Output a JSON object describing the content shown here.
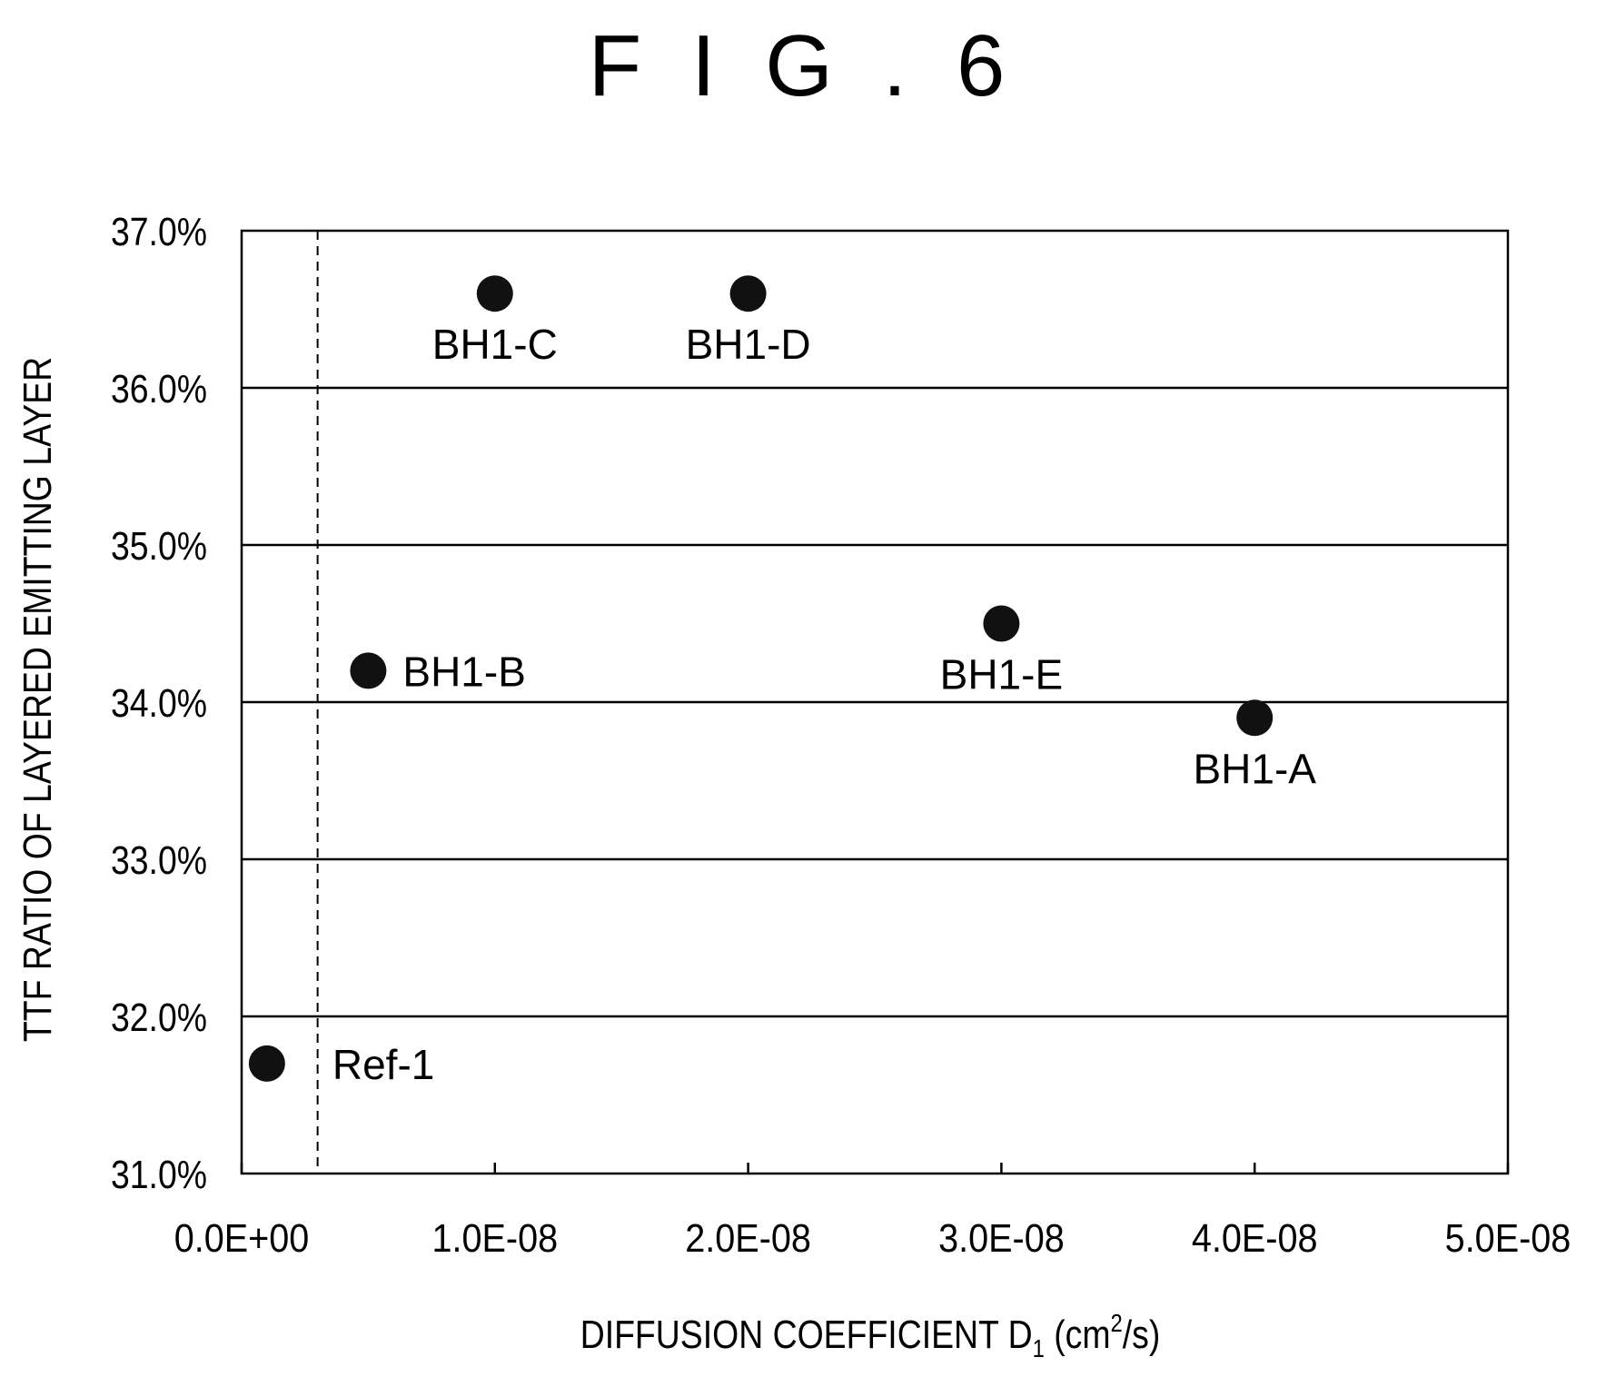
{
  "figure_label": "F I G . 6",
  "chart_data": {
    "type": "scatter",
    "title": "",
    "xlabel": {
      "main": "DIFFUSION COEFFICIENT D",
      "subscript": "1",
      "unit_open": " (cm",
      "superscript": "2",
      "unit_close": "/s)"
    },
    "ylabel": "TTF RATIO OF LAYERED EMITTING LAYER",
    "xlim": [
      0,
      5e-08
    ],
    "ylim": [
      31.0,
      37.0
    ],
    "x_ticks": [
      0,
      1e-08,
      2e-08,
      3e-08,
      4e-08,
      5e-08
    ],
    "x_tick_labels": [
      "0.0E+00",
      "1.0E-08",
      "2.0E-08",
      "3.0E-08",
      "4.0E-08",
      "5.0E-08"
    ],
    "y_ticks": [
      31,
      32,
      33,
      34,
      35,
      36,
      37
    ],
    "y_tick_labels": [
      "31.0%",
      "32.0%",
      "33.0%",
      "34.0%",
      "35.0%",
      "36.0%",
      "37.0%"
    ],
    "grid": "horizontal",
    "reference_line_x": 3e-09,
    "points": [
      {
        "label": "Ref-1",
        "x": 1e-09,
        "y": 31.7,
        "label_position": "right-far"
      },
      {
        "label": "BH1-B",
        "x": 5e-09,
        "y": 34.2,
        "label_position": "right"
      },
      {
        "label": "BH1-C",
        "x": 1e-08,
        "y": 36.6,
        "label_position": "below"
      },
      {
        "label": "BH1-D",
        "x": 2e-08,
        "y": 36.6,
        "label_position": "below"
      },
      {
        "label": "BH1-E",
        "x": 3e-08,
        "y": 34.5,
        "label_position": "below"
      },
      {
        "label": "BH1-A",
        "x": 4e-08,
        "y": 33.9,
        "label_position": "below"
      }
    ],
    "marker_color": "#111111",
    "line_color": "#000000"
  }
}
